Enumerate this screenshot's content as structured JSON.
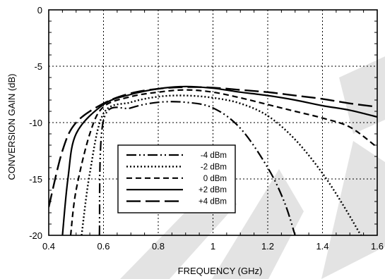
{
  "chart_data": {
    "type": "line",
    "xlabel": "FREQUENCY (GHz)",
    "ylabel": "CONVERSION GAIN (dB)",
    "xlim": [
      0.4,
      1.6
    ],
    "ylim": [
      -20,
      0
    ],
    "xticks": [
      0.4,
      0.6,
      0.8,
      1,
      1.2,
      1.4,
      1.6
    ],
    "xtick_labels": [
      "0.4",
      "0.6",
      "0.8",
      "1",
      "1.2",
      "1.4",
      "1.6"
    ],
    "yticks": [
      0,
      -5,
      -10,
      -15,
      -20
    ],
    "ytick_labels": [
      "0",
      "-5",
      "-10",
      "-15",
      "-20"
    ],
    "grid": true,
    "legend_position": "lower-left (inside plot)",
    "watermark": "discontinued-product diagonal gray stripes",
    "series": [
      {
        "name": "-4 dBm",
        "line_style": "dash-dot-dot",
        "points": [
          [
            0.585,
            -20
          ],
          [
            0.6,
            -9.8
          ],
          [
            0.7,
            -8.7
          ],
          [
            0.8,
            -8.2
          ],
          [
            0.9,
            -8.2
          ],
          [
            1.0,
            -8.7
          ],
          [
            1.1,
            -10.5
          ],
          [
            1.2,
            -14.0
          ],
          [
            1.26,
            -17.0
          ],
          [
            1.3,
            -20
          ]
        ]
      },
      {
        "name": "-2 dBm",
        "line_style": "dotted",
        "points": [
          [
            0.52,
            -20
          ],
          [
            0.55,
            -14.5
          ],
          [
            0.6,
            -9.2
          ],
          [
            0.7,
            -8.2
          ],
          [
            0.8,
            -7.7
          ],
          [
            0.9,
            -7.6
          ],
          [
            1.0,
            -7.8
          ],
          [
            1.1,
            -8.3
          ],
          [
            1.2,
            -9.4
          ],
          [
            1.3,
            -11.5
          ],
          [
            1.4,
            -14.5
          ],
          [
            1.48,
            -17.5
          ],
          [
            1.54,
            -20
          ]
        ]
      },
      {
        "name": "0 dBm",
        "line_style": "dashed",
        "points": [
          [
            0.48,
            -20
          ],
          [
            0.5,
            -16.0
          ],
          [
            0.55,
            -11.0
          ],
          [
            0.6,
            -8.6
          ],
          [
            0.7,
            -7.7
          ],
          [
            0.8,
            -7.3
          ],
          [
            0.9,
            -7.1
          ],
          [
            1.0,
            -7.3
          ],
          [
            1.1,
            -7.8
          ],
          [
            1.2,
            -8.4
          ],
          [
            1.3,
            -9.0
          ],
          [
            1.4,
            -9.6
          ],
          [
            1.5,
            -10.4
          ],
          [
            1.6,
            -12.2
          ]
        ]
      },
      {
        "name": "+2 dBm",
        "line_style": "solid",
        "points": [
          [
            0.45,
            -20
          ],
          [
            0.47,
            -15.0
          ],
          [
            0.5,
            -11.0
          ],
          [
            0.6,
            -8.4
          ],
          [
            0.7,
            -7.5
          ],
          [
            0.8,
            -7.0
          ],
          [
            0.9,
            -6.8
          ],
          [
            1.0,
            -6.95
          ],
          [
            1.1,
            -7.3
          ],
          [
            1.2,
            -7.6
          ],
          [
            1.3,
            -8.0
          ],
          [
            1.4,
            -8.5
          ],
          [
            1.5,
            -8.9
          ],
          [
            1.6,
            -9.5
          ]
        ]
      },
      {
        "name": "+4 dBm",
        "line_style": "long-dash",
        "points": [
          [
            0.4,
            -17.5
          ],
          [
            0.45,
            -12.5
          ],
          [
            0.5,
            -10.0
          ],
          [
            0.6,
            -8.3
          ],
          [
            0.7,
            -7.4
          ],
          [
            0.8,
            -7.0
          ],
          [
            0.9,
            -6.85
          ],
          [
            1.0,
            -6.9
          ],
          [
            1.1,
            -7.1
          ],
          [
            1.2,
            -7.3
          ],
          [
            1.3,
            -7.6
          ],
          [
            1.4,
            -7.9
          ],
          [
            1.5,
            -8.3
          ],
          [
            1.6,
            -8.6
          ]
        ]
      }
    ]
  }
}
